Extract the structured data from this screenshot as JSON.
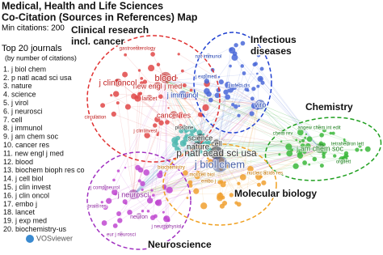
{
  "header": {
    "title": [
      "Medical, Health and Life Sciences",
      "Co-Citation (Sources in References) Map"
    ],
    "subtitle": "Min citations: 200"
  },
  "legend": {
    "title": "Top 20 journals",
    "subtitle": "(by number of citations)",
    "items": [
      "1. j biol chem",
      "2. p natl acad sci usa",
      "3. nature",
      "4. science",
      "5. j virol",
      "6. j neurosci",
      "7. cell",
      "8. j immunol",
      "9. j am chem soc",
      "10. cancer res",
      "11. new engl j med",
      "12. blood",
      "13. biochem bioph res co",
      "14. j cell biol",
      "15. j clin invest",
      "16. j clin oncol",
      "17. embo j",
      "18. lancet",
      "19. j exp med",
      "20. biochemistry-us"
    ]
  },
  "clusters": [
    {
      "label": [
        "Clinical research",
        "incl. cancer"
      ]
    },
    {
      "label": [
        "Infectious",
        "diseases"
      ]
    },
    {
      "label": [
        "Chemistry"
      ]
    },
    {
      "label": [
        "Molecular biology"
      ]
    },
    {
      "label": [
        "Neuroscience"
      ]
    }
  ],
  "nodes": [
    {
      "label": "p natl acad sci usa"
    },
    {
      "label": "j biol chem"
    },
    {
      "label": "nature"
    },
    {
      "label": "science"
    },
    {
      "label": "cell"
    },
    {
      "label": "blood"
    },
    {
      "label": "new engl j med"
    },
    {
      "label": "j clin oncol"
    },
    {
      "label": "cancer res"
    },
    {
      "label": "j immunol"
    },
    {
      "label": "viro"
    },
    {
      "label": "j am chem soc"
    },
    {
      "label": "angew chem int edit"
    },
    {
      "label": "j neurosci"
    },
    {
      "label": "nat immunol"
    },
    {
      "label": "gastroenterology"
    },
    {
      "label": "lancet"
    },
    {
      "label": "j exp med"
    },
    {
      "label": "j clin invest"
    },
    {
      "label": "plos one"
    },
    {
      "label": "biochemistry"
    },
    {
      "label": "mol cell biol"
    },
    {
      "label": "embo j"
    },
    {
      "label": "nucleic acids res"
    },
    {
      "label": "chem rev"
    },
    {
      "label": "org lett"
    },
    {
      "label": "tetrahedron lett"
    },
    {
      "label": "neuron"
    },
    {
      "label": "brain res"
    },
    {
      "label": "j comp neurol"
    },
    {
      "label": "eur j neurosci"
    },
    {
      "label": "j neurophysiol"
    },
    {
      "label": "circulation"
    },
    {
      "label": "j infect dis"
    }
  ],
  "logo": "VOSviewer"
}
